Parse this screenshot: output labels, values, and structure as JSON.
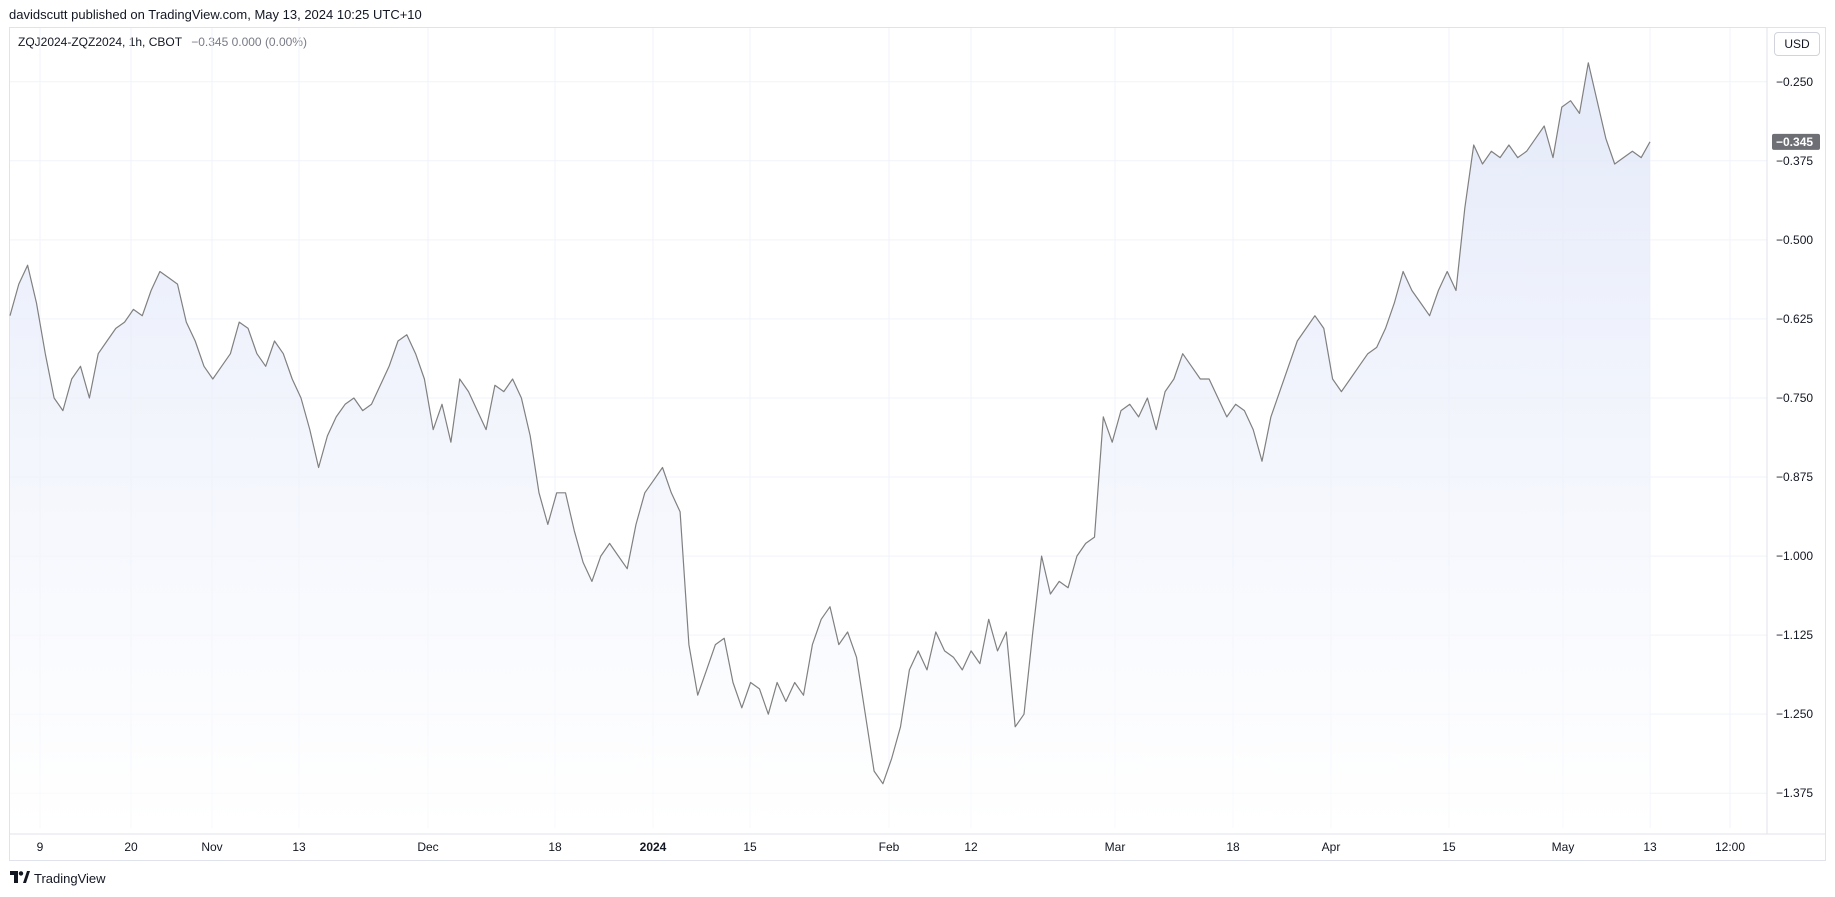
{
  "header": {
    "text": "davidscutt published on TradingView.com, May 13, 2024 10:25 UTC+10"
  },
  "legend": {
    "symbol": "ZQJ2024-ZQZ2024, 1h, CBOT",
    "values": "−0.345  0.000 (0.00%)"
  },
  "currency": "USD",
  "footer": {
    "brand": "TradingView"
  },
  "colors": {
    "line": "#808080",
    "fill_top": "#dce3f8",
    "fill_bottom": "#ffffff",
    "grid": "#f0f3fa",
    "last_badge": "#6e6e75"
  },
  "chart_data": {
    "type": "area",
    "ylim": [
      -1.43,
      -0.165
    ],
    "y_ticks": [
      {
        "value": -0.25,
        "label": "−0.250"
      },
      {
        "value": -0.375,
        "label": "−0.375"
      },
      {
        "value": -0.5,
        "label": "−0.500"
      },
      {
        "value": -0.625,
        "label": "−0.625"
      },
      {
        "value": -0.75,
        "label": "−0.750"
      },
      {
        "value": -0.875,
        "label": "−0.875"
      },
      {
        "value": -1.0,
        "label": "−1.000"
      },
      {
        "value": -1.125,
        "label": "−1.125"
      },
      {
        "value": -1.25,
        "label": "−1.250"
      },
      {
        "value": -1.375,
        "label": "−1.375"
      }
    ],
    "x_ticks": [
      {
        "label": "9",
        "bold": false
      },
      {
        "label": "20",
        "bold": false
      },
      {
        "label": "Nov",
        "bold": false
      },
      {
        "label": "13",
        "bold": false
      },
      {
        "label": "Dec",
        "bold": false
      },
      {
        "label": "18",
        "bold": false
      },
      {
        "label": "2024",
        "bold": true
      },
      {
        "label": "15",
        "bold": false
      },
      {
        "label": "Feb",
        "bold": false
      },
      {
        "label": "12",
        "bold": false
      },
      {
        "label": "Mar",
        "bold": false
      },
      {
        "label": "18",
        "bold": false
      },
      {
        "label": "Apr",
        "bold": false
      },
      {
        "label": "15",
        "bold": false
      },
      {
        "label": "May",
        "bold": false
      },
      {
        "label": "13",
        "bold": false
      },
      {
        "label": "12:00",
        "bold": false
      }
    ],
    "last_value": -0.345,
    "last_label": "−0.345",
    "series": [
      {
        "values": [
          -0.62,
          -0.57,
          -0.54,
          -0.6,
          -0.68,
          -0.75,
          -0.77,
          -0.72,
          -0.7,
          -0.75,
          -0.68,
          -0.66,
          -0.64,
          -0.63,
          -0.61,
          -0.62,
          -0.58,
          -0.55,
          -0.56,
          -0.57,
          -0.63,
          -0.66,
          -0.7,
          -0.72,
          -0.7,
          -0.68,
          -0.63,
          -0.64,
          -0.68,
          -0.7,
          -0.66,
          -0.68,
          -0.72,
          -0.75,
          -0.8,
          -0.86,
          -0.81,
          -0.78,
          -0.76,
          -0.75,
          -0.77,
          -0.76,
          -0.73,
          -0.7,
          -0.66,
          -0.65,
          -0.68,
          -0.72,
          -0.8,
          -0.76,
          -0.82,
          -0.72,
          -0.74,
          -0.77,
          -0.8,
          -0.73,
          -0.74,
          -0.72,
          -0.75,
          -0.81,
          -0.9,
          -0.95,
          -0.9,
          -0.9,
          -0.96,
          -1.01,
          -1.04,
          -1.0,
          -0.98,
          -1.0,
          -1.02,
          -0.95,
          -0.9,
          -0.88,
          -0.86,
          -0.9,
          -0.93,
          -1.14,
          -1.22,
          -1.18,
          -1.14,
          -1.13,
          -1.2,
          -1.24,
          -1.2,
          -1.21,
          -1.25,
          -1.2,
          -1.23,
          -1.2,
          -1.22,
          -1.14,
          -1.1,
          -1.08,
          -1.14,
          -1.12,
          -1.16,
          -1.25,
          -1.34,
          -1.36,
          -1.32,
          -1.27,
          -1.18,
          -1.15,
          -1.18,
          -1.12,
          -1.15,
          -1.16,
          -1.18,
          -1.15,
          -1.17,
          -1.1,
          -1.15,
          -1.12,
          -1.27,
          -1.25,
          -1.12,
          -1.0,
          -1.06,
          -1.04,
          -1.05,
          -1.0,
          -0.98,
          -0.97,
          -0.78,
          -0.82,
          -0.77,
          -0.76,
          -0.78,
          -0.75,
          -0.8,
          -0.74,
          -0.72,
          -0.68,
          -0.7,
          -0.72,
          -0.72,
          -0.75,
          -0.78,
          -0.76,
          -0.77,
          -0.8,
          -0.85,
          -0.78,
          -0.74,
          -0.7,
          -0.66,
          -0.64,
          -0.62,
          -0.64,
          -0.72,
          -0.74,
          -0.72,
          -0.7,
          -0.68,
          -0.67,
          -0.64,
          -0.6,
          -0.55,
          -0.58,
          -0.6,
          -0.62,
          -0.58,
          -0.55,
          -0.58,
          -0.45,
          -0.35,
          -0.38,
          -0.36,
          -0.37,
          -0.35,
          -0.37,
          -0.36,
          -0.34,
          -0.32,
          -0.37,
          -0.29,
          -0.28,
          -0.3,
          -0.22,
          -0.28,
          -0.34,
          -0.38,
          -0.37,
          -0.36,
          -0.37,
          -0.345
        ]
      }
    ]
  }
}
